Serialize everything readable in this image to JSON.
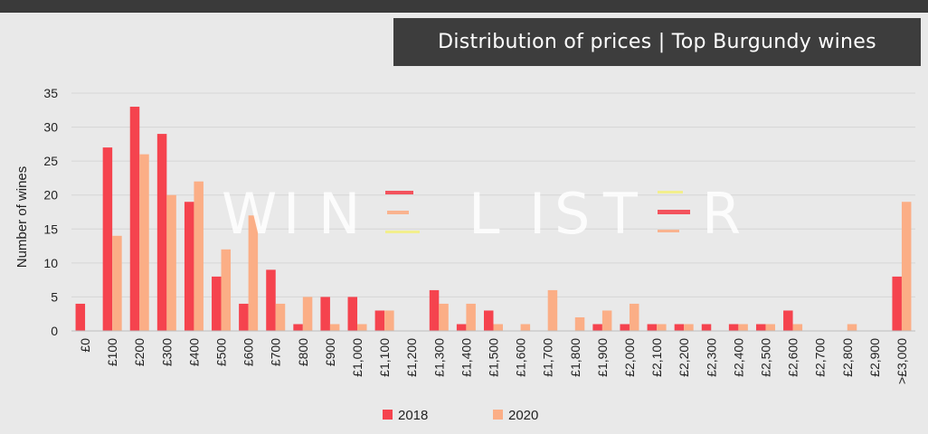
{
  "chart_data": {
    "type": "bar",
    "title": "Distribution of prices | Top Burgundy wines",
    "ylabel": "Number of wines",
    "xlabel": "",
    "ylim": [
      0,
      35
    ],
    "yticks": [
      0,
      5,
      10,
      15,
      20,
      25,
      30,
      35
    ],
    "grid": true,
    "legend": "bottom",
    "categories": [
      "£0",
      "£100",
      "£200",
      "£300",
      "£400",
      "£500",
      "£600",
      "£700",
      "£800",
      "£900",
      "£1,000",
      "£1,100",
      "£1,200",
      "£1,300",
      "£1,400",
      "£1,500",
      "£1,600",
      "£1,700",
      "£1,800",
      "£1,900",
      "£2,000",
      "£2,100",
      "£2,200",
      "£2,300",
      "£2,400",
      "£2,500",
      "£2,600",
      "£2,700",
      "£2,800",
      "£2,900",
      ">£3,000"
    ],
    "series": [
      {
        "name": "2018",
        "color": "#f5434e",
        "values": [
          4,
          27,
          33,
          29,
          19,
          8,
          4,
          9,
          1,
          5,
          5,
          3,
          0,
          6,
          1,
          3,
          0,
          0,
          0,
          1,
          1,
          1,
          1,
          1,
          1,
          1,
          3,
          0,
          0,
          0,
          8
        ]
      },
      {
        "name": "2020",
        "color": "#fbae86",
        "values": [
          0,
          14,
          26,
          20,
          22,
          12,
          17,
          4,
          5,
          1,
          1,
          3,
          0,
          4,
          4,
          1,
          1,
          6,
          2,
          3,
          4,
          1,
          1,
          0,
          1,
          1,
          1,
          0,
          1,
          0,
          19
        ]
      }
    ]
  },
  "watermark": "WINE LISTER"
}
